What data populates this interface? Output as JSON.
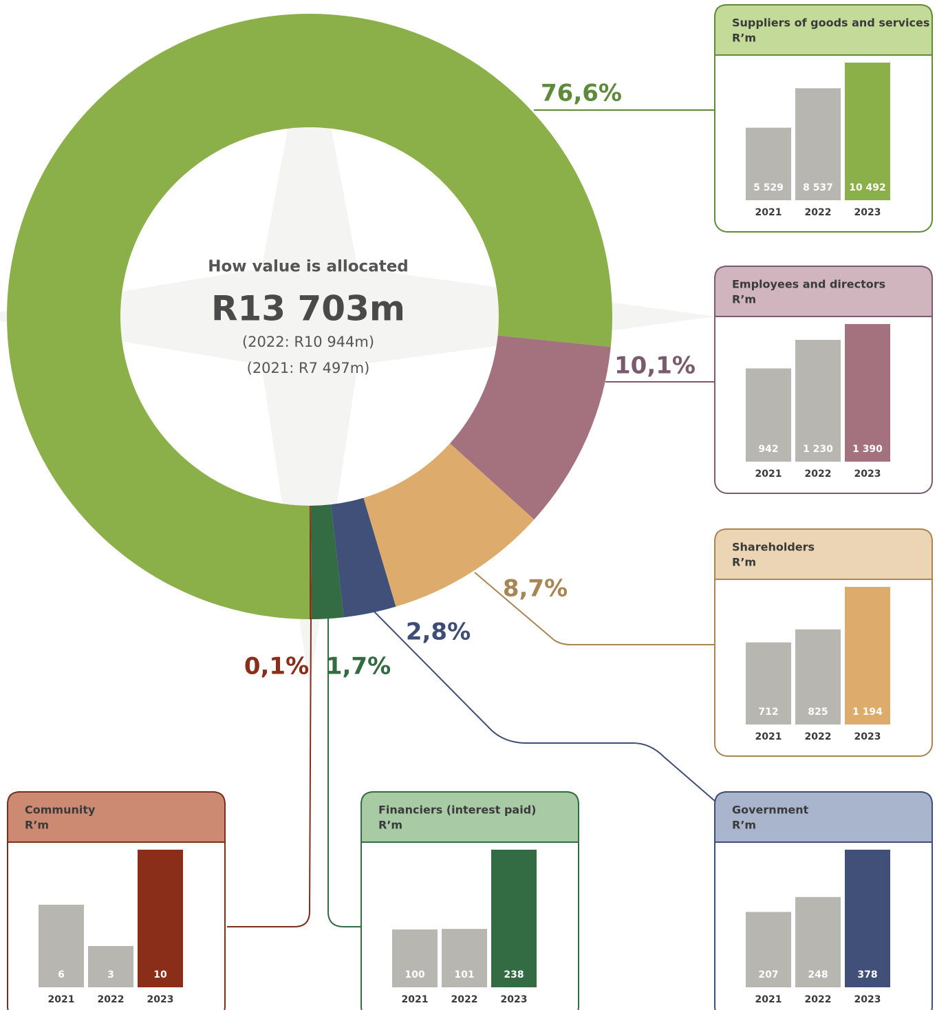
{
  "chart_data": [
    {
      "type": "donut",
      "title": "How value is allocated",
      "center_text": "R13 703m",
      "notes": [
        "(2022: R10 944m)",
        "(2021: R7 497m)"
      ],
      "values": [
        76.6,
        10.1,
        8.7,
        2.8,
        1.7,
        0.1
      ],
      "value_labels": [
        "76,6%",
        "10,1%",
        "8,7%",
        "2,8%",
        "1,7%",
        "0,1%"
      ],
      "colors": [
        "#8cb049",
        "#a4727f",
        "#ddab6c",
        "#405079",
        "#336b43",
        "#8b2e19"
      ]
    },
    {
      "type": "bar",
      "title": "Suppliers of goods and services",
      "subtitle": "R’m",
      "categories": [
        "2021",
        "2022",
        "2023"
      ],
      "values": [
        5529,
        8537,
        10492
      ],
      "value_labels": [
        "5 529",
        "8 537",
        "10 492"
      ],
      "colors": [
        "#b8b6b1",
        "#b8b6b1",
        "#8cb049"
      ]
    },
    {
      "type": "bar",
      "title": "Employees and directors",
      "subtitle": "R’m",
      "categories": [
        "2021",
        "2022",
        "2023"
      ],
      "values": [
        942,
        1230,
        1390
      ],
      "value_labels": [
        "942",
        "1 230",
        "1 390"
      ],
      "colors": [
        "#b8b6b1",
        "#b8b6b1",
        "#a4727f"
      ]
    },
    {
      "type": "bar",
      "title": "Shareholders",
      "subtitle": "R’m",
      "categories": [
        "2021",
        "2022",
        "2023"
      ],
      "values": [
        712,
        825,
        1194
      ],
      "value_labels": [
        "712",
        "825",
        "1 194"
      ],
      "colors": [
        "#b8b6b1",
        "#b8b6b1",
        "#ddab6c"
      ]
    },
    {
      "type": "bar",
      "title": "Community",
      "subtitle": "R’m",
      "categories": [
        "2021",
        "2022",
        "2023"
      ],
      "values": [
        6,
        3,
        10
      ],
      "colors": [
        "#b8b6b1",
        "#b8b6b1",
        "#8b2e19"
      ]
    },
    {
      "type": "bar",
      "title": "Financiers (interest paid)",
      "subtitle": "R’m",
      "categories": [
        "2021",
        "2022",
        "2023"
      ],
      "values": [
        100,
        101,
        238
      ],
      "colors": [
        "#b8b6b1",
        "#b8b6b1",
        "#336b43"
      ]
    },
    {
      "type": "bar",
      "title": "Government",
      "subtitle": "R’m",
      "categories": [
        "2021",
        "2022",
        "2023"
      ],
      "values": [
        207,
        248,
        378
      ],
      "colors": [
        "#b8b6b1",
        "#b8b6b1",
        "#405079"
      ]
    }
  ]
}
